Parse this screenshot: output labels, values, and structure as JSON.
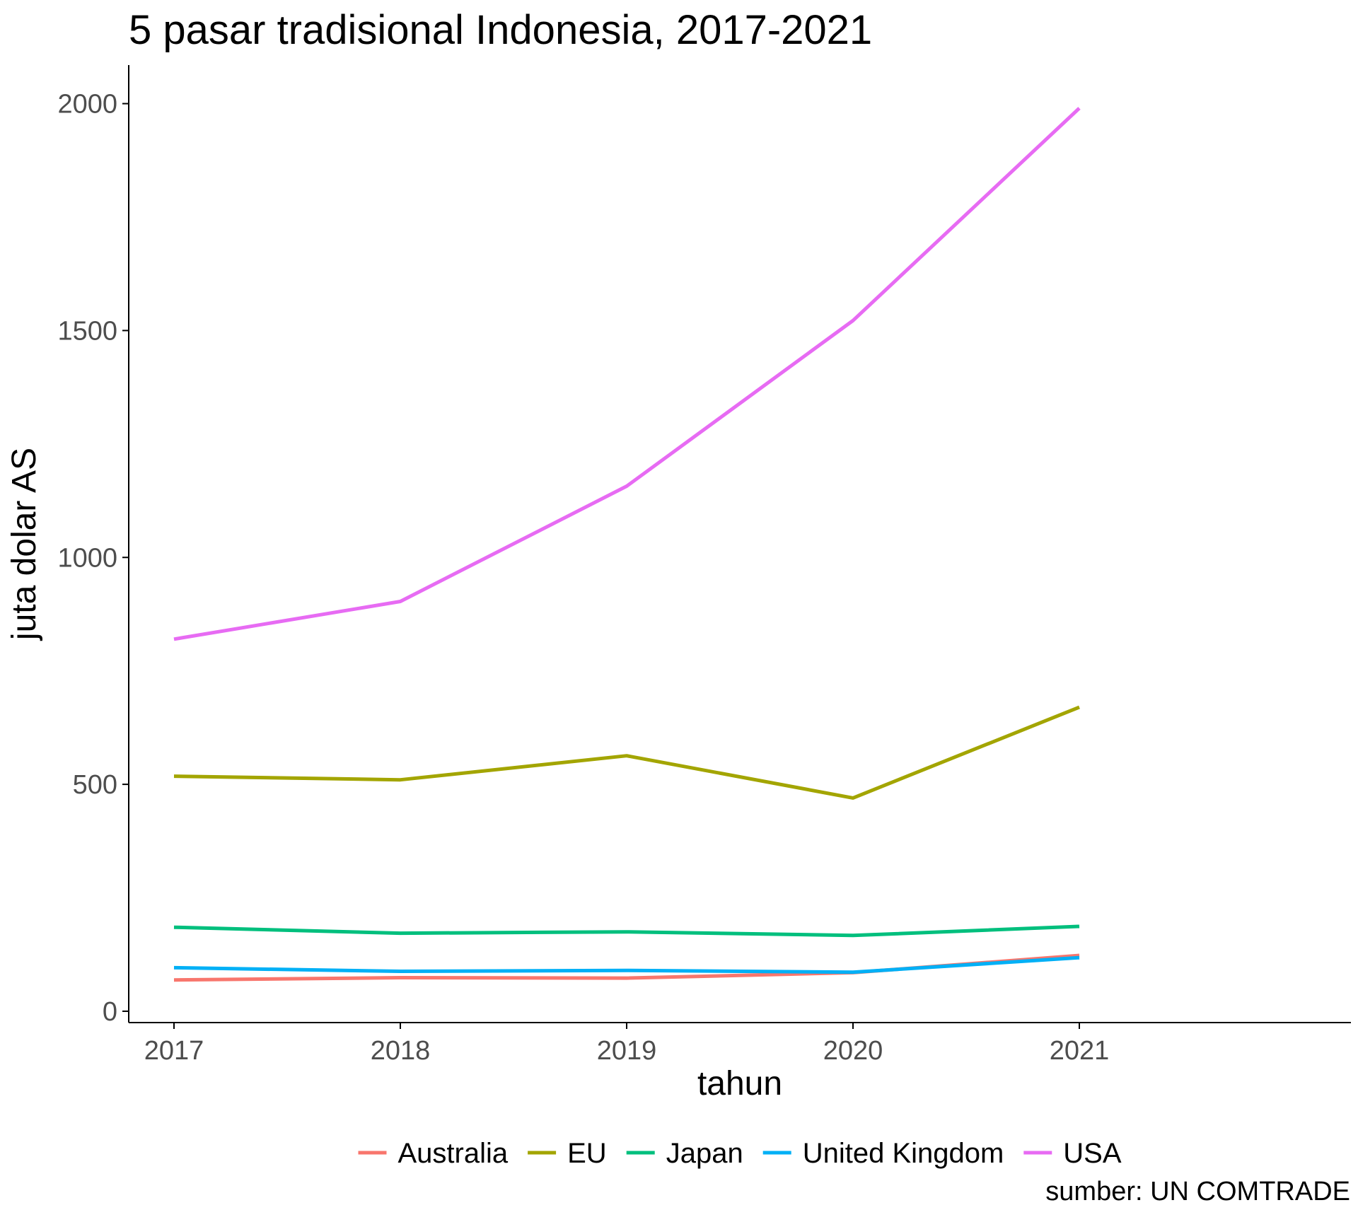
{
  "chart_data": {
    "type": "line",
    "title": "5 pasar tradisional Indonesia, 2017-2021",
    "xlabel": "tahun",
    "ylabel": "juta dolar AS",
    "caption": "sumber: UN COMTRADE",
    "x": [
      2017,
      2018,
      2019,
      2020,
      2021
    ],
    "x_tick_labels": [
      "2017",
      "2018",
      "2019",
      "2020",
      "2021"
    ],
    "y_ticks": [
      0,
      500,
      1000,
      1500,
      2000
    ],
    "y_tick_labels": [
      "0",
      "500",
      "1000",
      "1500",
      "2000"
    ],
    "xlim": [
      2016.8,
      2022.2
    ],
    "ylim": [
      -25,
      2085
    ],
    "grid": false,
    "legend_position": "bottom",
    "series": [
      {
        "name": "Australia",
        "color": "#F8766D",
        "values": [
          69,
          74,
          73,
          85,
          123
        ]
      },
      {
        "name": "EU",
        "color": "#A3A500",
        "values": [
          518,
          510,
          563,
          470,
          670
        ]
      },
      {
        "name": "Japan",
        "color": "#00BF7D",
        "values": [
          185,
          172,
          175,
          167,
          187
        ]
      },
      {
        "name": "United Kingdom",
        "color": "#00B0F6",
        "values": [
          96,
          88,
          90,
          86,
          118
        ]
      },
      {
        "name": "USA",
        "color": "#E76BF3",
        "values": [
          820,
          903,
          1157,
          1522,
          1990
        ]
      }
    ]
  }
}
